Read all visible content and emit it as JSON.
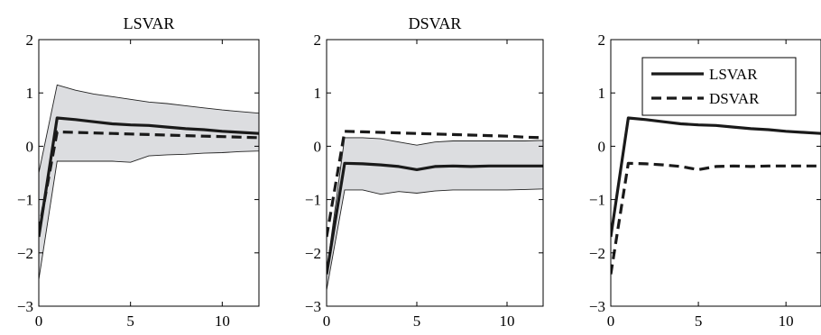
{
  "chart_data": [
    {
      "type": "line",
      "title": "LSVAR",
      "xlim": [
        0,
        12
      ],
      "ylim": [
        -3,
        2
      ],
      "xticks": [
        0,
        5,
        10
      ],
      "yticks": [
        2,
        1,
        0,
        -1,
        -2,
        -3
      ],
      "ytick_labels": [
        "2",
        "1",
        "0",
        "−1",
        "−2",
        "−3"
      ],
      "x": [
        0,
        1,
        2,
        3,
        4,
        5,
        6,
        7,
        8,
        9,
        10,
        11,
        12
      ],
      "series": [
        {
          "style": "solid",
          "values": [
            -1.7,
            0.53,
            0.5,
            0.46,
            0.42,
            0.4,
            0.39,
            0.36,
            0.33,
            0.31,
            0.28,
            0.26,
            0.24
          ]
        },
        {
          "style": "dashed",
          "values": [
            -1.6,
            0.27,
            0.26,
            0.25,
            0.24,
            0.23,
            0.22,
            0.21,
            0.2,
            0.19,
            0.18,
            0.17,
            0.16
          ]
        }
      ],
      "band": {
        "upper": [
          -0.5,
          1.15,
          1.05,
          0.98,
          0.93,
          0.88,
          0.83,
          0.8,
          0.76,
          0.72,
          0.68,
          0.65,
          0.62
        ],
        "lower": [
          -2.5,
          -0.28,
          -0.28,
          -0.28,
          -0.28,
          -0.3,
          -0.18,
          -0.16,
          -0.15,
          -0.13,
          -0.12,
          -0.1,
          -0.09
        ]
      }
    },
    {
      "type": "line",
      "title": "DSVAR",
      "xlim": [
        0,
        12
      ],
      "ylim": [
        -3,
        2
      ],
      "xticks": [
        0,
        5,
        10
      ],
      "yticks": [
        2,
        1,
        0,
        -1,
        -2,
        -3
      ],
      "ytick_labels": [
        "2",
        "1",
        "0",
        "−1",
        "−2",
        "−3"
      ],
      "x": [
        0,
        1,
        2,
        3,
        4,
        5,
        6,
        7,
        8,
        9,
        10,
        11,
        12
      ],
      "series": [
        {
          "style": "solid",
          "values": [
            -2.4,
            -0.32,
            -0.33,
            -0.35,
            -0.38,
            -0.44,
            -0.38,
            -0.37,
            -0.38,
            -0.37,
            -0.37,
            -0.37,
            -0.37
          ]
        },
        {
          "style": "dashed",
          "values": [
            -1.7,
            0.28,
            0.27,
            0.26,
            0.25,
            0.24,
            0.23,
            0.22,
            0.21,
            0.2,
            0.19,
            0.17,
            0.16
          ]
        }
      ],
      "band": {
        "upper": [
          -2.35,
          0.16,
          0.16,
          0.14,
          0.08,
          0.02,
          0.08,
          0.1,
          0.1,
          0.1,
          0.1,
          0.1,
          0.11
        ],
        "lower": [
          -2.7,
          -0.82,
          -0.82,
          -0.9,
          -0.85,
          -0.88,
          -0.84,
          -0.82,
          -0.82,
          -0.82,
          -0.82,
          -0.81,
          -0.8
        ]
      }
    },
    {
      "type": "line",
      "title": "",
      "xlim": [
        0,
        12
      ],
      "ylim": [
        -3,
        2
      ],
      "xticks": [
        0,
        5,
        10
      ],
      "yticks": [
        2,
        1,
        0,
        -1,
        -2,
        -3
      ],
      "ytick_labels": [
        "2",
        "1",
        "0",
        "−1",
        "−2",
        "−3"
      ],
      "x": [
        0,
        1,
        2,
        3,
        4,
        5,
        6,
        7,
        8,
        9,
        10,
        11,
        12
      ],
      "series": [
        {
          "name": "LSVAR",
          "style": "solid",
          "values": [
            -1.7,
            0.53,
            0.5,
            0.46,
            0.42,
            0.4,
            0.39,
            0.36,
            0.33,
            0.31,
            0.28,
            0.26,
            0.24
          ]
        },
        {
          "name": "DSVAR",
          "style": "dashed",
          "values": [
            -2.4,
            -0.32,
            -0.33,
            -0.35,
            -0.38,
            -0.44,
            -0.38,
            -0.37,
            -0.38,
            -0.37,
            -0.37,
            -0.37,
            -0.37
          ]
        }
      ],
      "legend": "top-right"
    }
  ]
}
